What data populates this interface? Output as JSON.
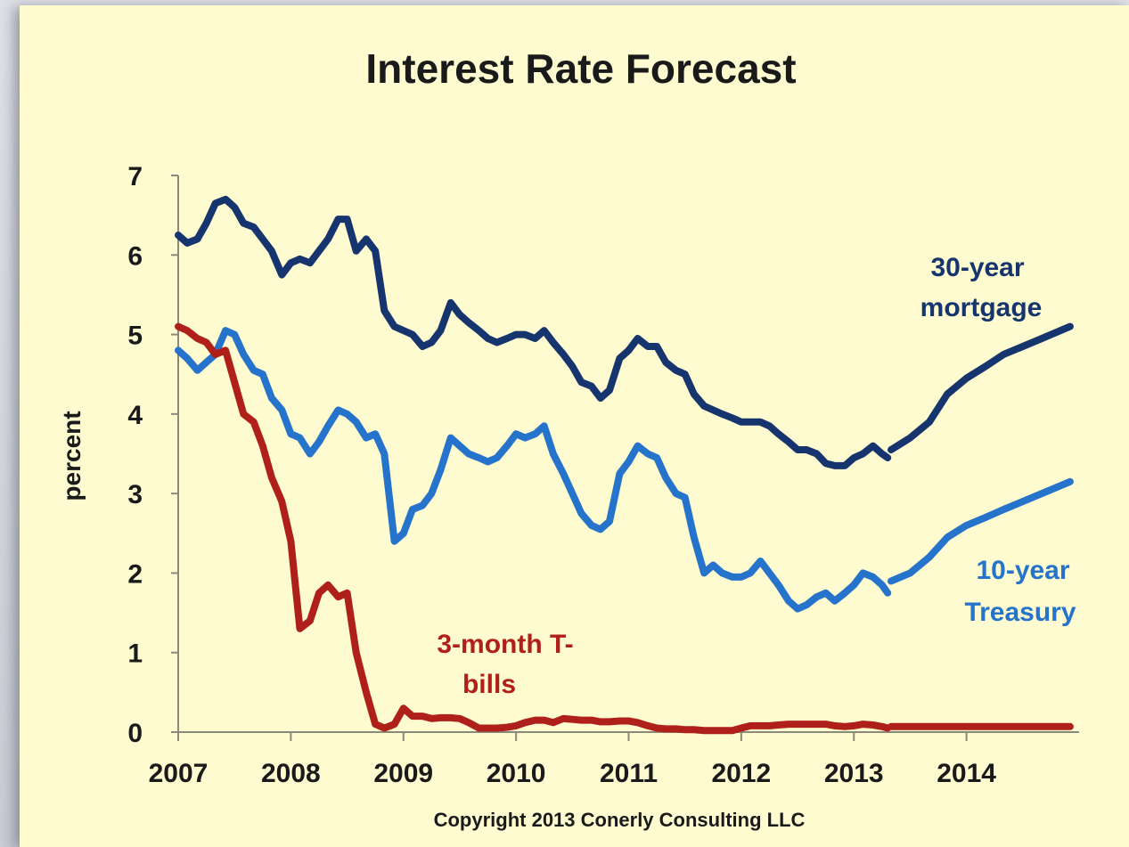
{
  "colors": {
    "background": "#fdfbcf",
    "mortgage": "#16356e",
    "treasury": "#2673cc",
    "tbills": "#b0201a",
    "axis": "#8a8a7a"
  },
  "chart_data": {
    "type": "line",
    "title": "Interest Rate Forecast",
    "xlabel": "",
    "ylabel": "percent",
    "footer": "Copyright 2013 Conerly Consulting LLC",
    "xlim": [
      2007,
      2015
    ],
    "ylim": [
      0,
      7
    ],
    "grid": false,
    "x_ticks": [
      "2007",
      "2008",
      "2009",
      "2010",
      "2011",
      "2012",
      "2013",
      "2014"
    ],
    "y_ticks": [
      "0",
      "1",
      "2",
      "3",
      "4",
      "5",
      "6",
      "7"
    ],
    "series": [
      {
        "name": "30-year mortgage",
        "label_lines": [
          "30-year",
          "mortgage"
        ],
        "color": "#16356e",
        "historical": [
          [
            2007.0,
            6.25
          ],
          [
            2007.08,
            6.15
          ],
          [
            2007.17,
            6.2
          ],
          [
            2007.25,
            6.4
          ],
          [
            2007.33,
            6.65
          ],
          [
            2007.42,
            6.7
          ],
          [
            2007.5,
            6.6
          ],
          [
            2007.58,
            6.4
          ],
          [
            2007.67,
            6.35
          ],
          [
            2007.75,
            6.2
          ],
          [
            2007.83,
            6.05
          ],
          [
            2007.92,
            5.75
          ],
          [
            2008.0,
            5.9
          ],
          [
            2008.08,
            5.95
          ],
          [
            2008.17,
            5.9
          ],
          [
            2008.25,
            6.05
          ],
          [
            2008.33,
            6.2
          ],
          [
            2008.42,
            6.45
          ],
          [
            2008.5,
            6.45
          ],
          [
            2008.58,
            6.05
          ],
          [
            2008.67,
            6.2
          ],
          [
            2008.75,
            6.05
          ],
          [
            2008.83,
            5.3
          ],
          [
            2008.92,
            5.1
          ],
          [
            2009.0,
            5.05
          ],
          [
            2009.08,
            5.0
          ],
          [
            2009.17,
            4.85
          ],
          [
            2009.25,
            4.9
          ],
          [
            2009.33,
            5.05
          ],
          [
            2009.42,
            5.4
          ],
          [
            2009.5,
            5.25
          ],
          [
            2009.58,
            5.15
          ],
          [
            2009.67,
            5.05
          ],
          [
            2009.75,
            4.95
          ],
          [
            2009.83,
            4.9
          ],
          [
            2009.92,
            4.95
          ],
          [
            2010.0,
            5.0
          ],
          [
            2010.08,
            5.0
          ],
          [
            2010.17,
            4.95
          ],
          [
            2010.25,
            5.05
          ],
          [
            2010.33,
            4.9
          ],
          [
            2010.42,
            4.75
          ],
          [
            2010.5,
            4.6
          ],
          [
            2010.58,
            4.4
          ],
          [
            2010.67,
            4.35
          ],
          [
            2010.75,
            4.2
          ],
          [
            2010.83,
            4.3
          ],
          [
            2010.92,
            4.7
          ],
          [
            2011.0,
            4.8
          ],
          [
            2011.08,
            4.95
          ],
          [
            2011.17,
            4.85
          ],
          [
            2011.25,
            4.85
          ],
          [
            2011.33,
            4.65
          ],
          [
            2011.42,
            4.55
          ],
          [
            2011.5,
            4.5
          ],
          [
            2011.58,
            4.25
          ],
          [
            2011.67,
            4.1
          ],
          [
            2011.75,
            4.05
          ],
          [
            2011.83,
            4.0
          ],
          [
            2011.92,
            3.95
          ],
          [
            2012.0,
            3.9
          ],
          [
            2012.08,
            3.9
          ],
          [
            2012.17,
            3.9
          ],
          [
            2012.25,
            3.85
          ],
          [
            2012.33,
            3.75
          ],
          [
            2012.42,
            3.65
          ],
          [
            2012.5,
            3.55
          ],
          [
            2012.58,
            3.55
          ],
          [
            2012.67,
            3.5
          ],
          [
            2012.75,
            3.38
          ],
          [
            2012.83,
            3.35
          ],
          [
            2012.92,
            3.35
          ],
          [
            2013.0,
            3.45
          ],
          [
            2013.08,
            3.5
          ],
          [
            2013.17,
            3.6
          ],
          [
            2013.25,
            3.5
          ],
          [
            2013.3,
            3.45
          ]
        ],
        "forecast": [
          [
            2013.33,
            3.55
          ],
          [
            2013.5,
            3.7
          ],
          [
            2013.67,
            3.9
          ],
          [
            2013.83,
            4.25
          ],
          [
            2014.0,
            4.45
          ],
          [
            2014.17,
            4.6
          ],
          [
            2014.33,
            4.75
          ],
          [
            2014.5,
            4.85
          ],
          [
            2014.67,
            4.95
          ],
          [
            2014.92,
            5.1
          ]
        ]
      },
      {
        "name": "10-year Treasury",
        "label_lines": [
          "10-year",
          "Treasury"
        ],
        "color": "#2673cc",
        "historical": [
          [
            2007.0,
            4.8
          ],
          [
            2007.08,
            4.7
          ],
          [
            2007.17,
            4.55
          ],
          [
            2007.25,
            4.65
          ],
          [
            2007.33,
            4.75
          ],
          [
            2007.42,
            5.05
          ],
          [
            2007.5,
            5.0
          ],
          [
            2007.58,
            4.75
          ],
          [
            2007.67,
            4.55
          ],
          [
            2007.75,
            4.5
          ],
          [
            2007.83,
            4.2
          ],
          [
            2007.92,
            4.05
          ],
          [
            2008.0,
            3.75
          ],
          [
            2008.08,
            3.7
          ],
          [
            2008.17,
            3.5
          ],
          [
            2008.25,
            3.65
          ],
          [
            2008.33,
            3.85
          ],
          [
            2008.42,
            4.05
          ],
          [
            2008.5,
            4.0
          ],
          [
            2008.58,
            3.9
          ],
          [
            2008.67,
            3.7
          ],
          [
            2008.75,
            3.75
          ],
          [
            2008.83,
            3.5
          ],
          [
            2008.92,
            2.4
          ],
          [
            2009.0,
            2.5
          ],
          [
            2009.08,
            2.8
          ],
          [
            2009.17,
            2.85
          ],
          [
            2009.25,
            3.0
          ],
          [
            2009.33,
            3.3
          ],
          [
            2009.42,
            3.7
          ],
          [
            2009.5,
            3.6
          ],
          [
            2009.58,
            3.5
          ],
          [
            2009.67,
            3.45
          ],
          [
            2009.75,
            3.4
          ],
          [
            2009.83,
            3.45
          ],
          [
            2009.92,
            3.6
          ],
          [
            2010.0,
            3.75
          ],
          [
            2010.08,
            3.7
          ],
          [
            2010.17,
            3.75
          ],
          [
            2010.25,
            3.85
          ],
          [
            2010.33,
            3.5
          ],
          [
            2010.42,
            3.25
          ],
          [
            2010.5,
            3.0
          ],
          [
            2010.58,
            2.75
          ],
          [
            2010.67,
            2.6
          ],
          [
            2010.75,
            2.55
          ],
          [
            2010.83,
            2.65
          ],
          [
            2010.92,
            3.25
          ],
          [
            2011.0,
            3.4
          ],
          [
            2011.08,
            3.6
          ],
          [
            2011.17,
            3.5
          ],
          [
            2011.25,
            3.45
          ],
          [
            2011.33,
            3.2
          ],
          [
            2011.42,
            3.0
          ],
          [
            2011.5,
            2.95
          ],
          [
            2011.58,
            2.45
          ],
          [
            2011.67,
            2.0
          ],
          [
            2011.75,
            2.1
          ],
          [
            2011.83,
            2.0
          ],
          [
            2011.92,
            1.95
          ],
          [
            2012.0,
            1.95
          ],
          [
            2012.08,
            2.0
          ],
          [
            2012.17,
            2.15
          ],
          [
            2012.25,
            2.0
          ],
          [
            2012.33,
            1.85
          ],
          [
            2012.42,
            1.65
          ],
          [
            2012.5,
            1.55
          ],
          [
            2012.58,
            1.6
          ],
          [
            2012.67,
            1.7
          ],
          [
            2012.75,
            1.75
          ],
          [
            2012.83,
            1.65
          ],
          [
            2012.92,
            1.75
          ],
          [
            2013.0,
            1.85
          ],
          [
            2013.08,
            2.0
          ],
          [
            2013.17,
            1.95
          ],
          [
            2013.25,
            1.85
          ],
          [
            2013.3,
            1.75
          ]
        ],
        "forecast": [
          [
            2013.33,
            1.9
          ],
          [
            2013.5,
            2.0
          ],
          [
            2013.67,
            2.2
          ],
          [
            2013.83,
            2.45
          ],
          [
            2014.0,
            2.6
          ],
          [
            2014.17,
            2.7
          ],
          [
            2014.33,
            2.8
          ],
          [
            2014.5,
            2.9
          ],
          [
            2014.67,
            3.0
          ],
          [
            2014.92,
            3.15
          ]
        ]
      },
      {
        "name": "3-month T-bills",
        "label_lines": [
          "3-month T-",
          "bills"
        ],
        "color": "#b0201a",
        "historical": [
          [
            2007.0,
            5.1
          ],
          [
            2007.08,
            5.05
          ],
          [
            2007.17,
            4.95
          ],
          [
            2007.25,
            4.9
          ],
          [
            2007.33,
            4.75
          ],
          [
            2007.42,
            4.8
          ],
          [
            2007.5,
            4.4
          ],
          [
            2007.58,
            4.0
          ],
          [
            2007.67,
            3.9
          ],
          [
            2007.75,
            3.6
          ],
          [
            2007.83,
            3.2
          ],
          [
            2007.92,
            2.9
          ],
          [
            2008.0,
            2.4
          ],
          [
            2008.08,
            1.3
          ],
          [
            2008.17,
            1.4
          ],
          [
            2008.25,
            1.75
          ],
          [
            2008.33,
            1.85
          ],
          [
            2008.42,
            1.7
          ],
          [
            2008.5,
            1.75
          ],
          [
            2008.58,
            1.0
          ],
          [
            2008.67,
            0.5
          ],
          [
            2008.75,
            0.1
          ],
          [
            2008.83,
            0.05
          ],
          [
            2008.92,
            0.1
          ],
          [
            2009.0,
            0.3
          ],
          [
            2009.08,
            0.2
          ],
          [
            2009.17,
            0.2
          ],
          [
            2009.25,
            0.17
          ],
          [
            2009.33,
            0.18
          ],
          [
            2009.42,
            0.18
          ],
          [
            2009.5,
            0.17
          ],
          [
            2009.58,
            0.12
          ],
          [
            2009.67,
            0.05
          ],
          [
            2009.75,
            0.05
          ],
          [
            2009.83,
            0.05
          ],
          [
            2009.92,
            0.06
          ],
          [
            2010.0,
            0.08
          ],
          [
            2010.08,
            0.12
          ],
          [
            2010.17,
            0.15
          ],
          [
            2010.25,
            0.15
          ],
          [
            2010.33,
            0.12
          ],
          [
            2010.42,
            0.17
          ],
          [
            2010.5,
            0.16
          ],
          [
            2010.58,
            0.15
          ],
          [
            2010.67,
            0.15
          ],
          [
            2010.75,
            0.13
          ],
          [
            2010.83,
            0.13
          ],
          [
            2010.92,
            0.14
          ],
          [
            2011.0,
            0.14
          ],
          [
            2011.08,
            0.12
          ],
          [
            2011.17,
            0.08
          ],
          [
            2011.25,
            0.05
          ],
          [
            2011.33,
            0.04
          ],
          [
            2011.42,
            0.04
          ],
          [
            2011.5,
            0.03
          ],
          [
            2011.58,
            0.03
          ],
          [
            2011.67,
            0.02
          ],
          [
            2011.75,
            0.02
          ],
          [
            2011.83,
            0.02
          ],
          [
            2011.92,
            0.02
          ],
          [
            2012.0,
            0.05
          ],
          [
            2012.08,
            0.08
          ],
          [
            2012.17,
            0.08
          ],
          [
            2012.25,
            0.08
          ],
          [
            2012.33,
            0.09
          ],
          [
            2012.42,
            0.1
          ],
          [
            2012.5,
            0.1
          ],
          [
            2012.58,
            0.1
          ],
          [
            2012.67,
            0.1
          ],
          [
            2012.75,
            0.1
          ],
          [
            2012.83,
            0.08
          ],
          [
            2012.92,
            0.07
          ],
          [
            2013.0,
            0.08
          ],
          [
            2013.08,
            0.1
          ],
          [
            2013.17,
            0.09
          ],
          [
            2013.25,
            0.07
          ],
          [
            2013.3,
            0.05
          ]
        ],
        "forecast": [
          [
            2013.33,
            0.07
          ],
          [
            2013.67,
            0.07
          ],
          [
            2014.0,
            0.07
          ],
          [
            2014.33,
            0.07
          ],
          [
            2014.67,
            0.07
          ],
          [
            2014.92,
            0.07
          ]
        ]
      }
    ]
  }
}
